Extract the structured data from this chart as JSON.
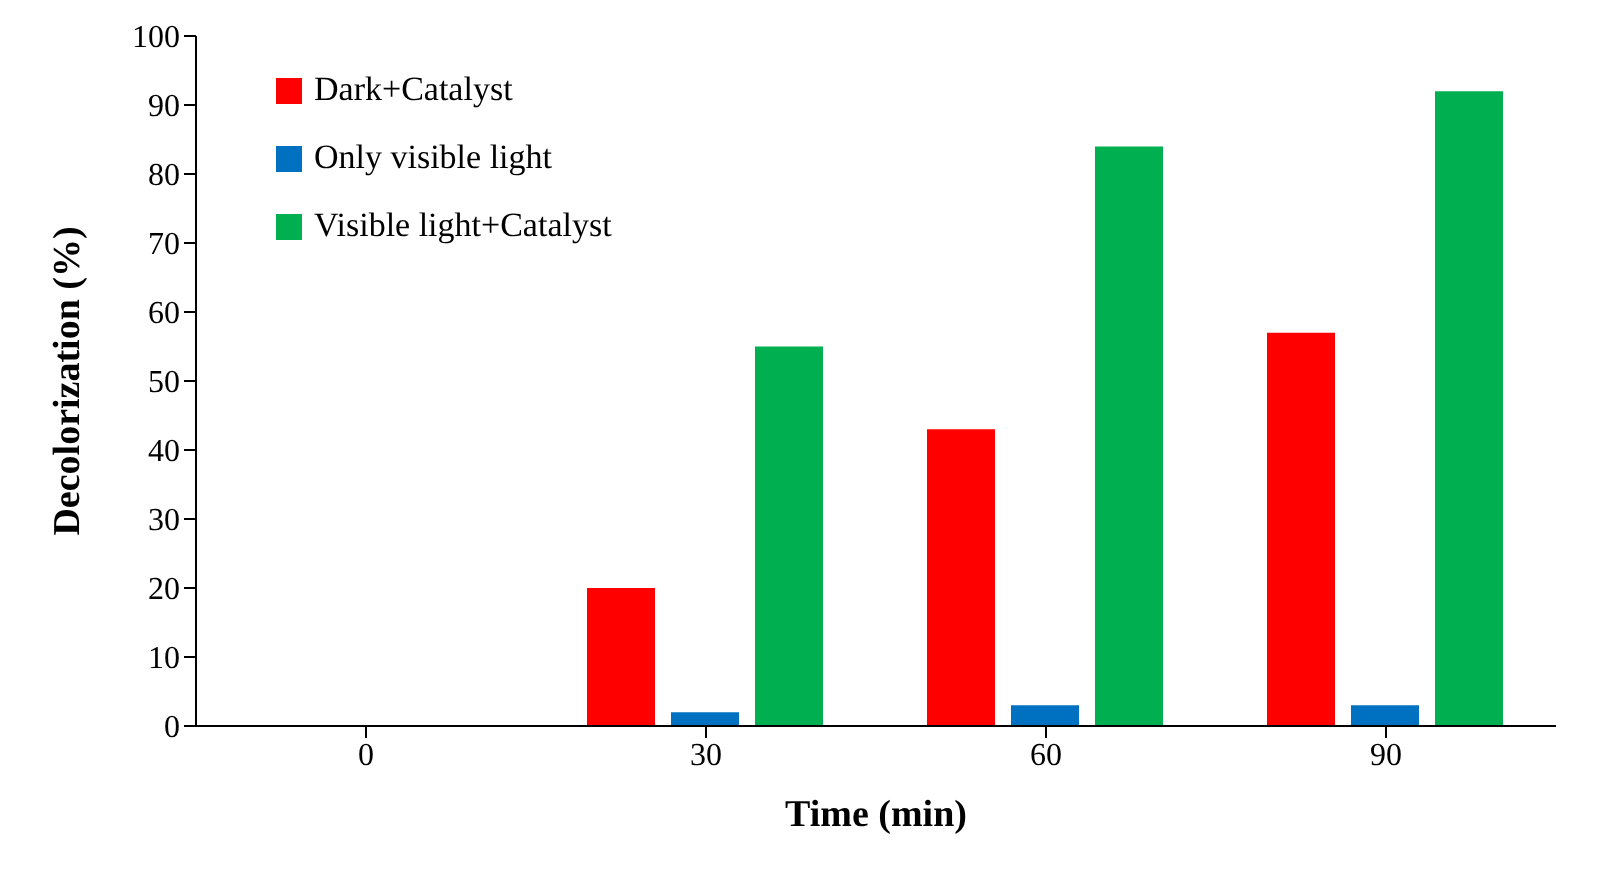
{
  "chart_data": {
    "type": "bar",
    "xlabel": "Time (min)",
    "ylabel": "Decolorization (%)",
    "categories": [
      "0",
      "30",
      "60",
      "90"
    ],
    "series": [
      {
        "name": "Dark+Catalyst",
        "color": "#ff0000",
        "values": [
          0,
          20,
          43,
          57
        ]
      },
      {
        "name": "Only visible light",
        "color": "#0070c0",
        "values": [
          0,
          2,
          3,
          3
        ]
      },
      {
        "name": "Visible light+Catalyst",
        "color": "#00b050",
        "values": [
          0,
          55,
          84,
          92
        ]
      }
    ],
    "ylim": [
      0,
      100
    ],
    "yticks": [
      0,
      10,
      20,
      30,
      40,
      50,
      60,
      70,
      80,
      90,
      100
    ],
    "grid": false,
    "legend": "top left"
  }
}
